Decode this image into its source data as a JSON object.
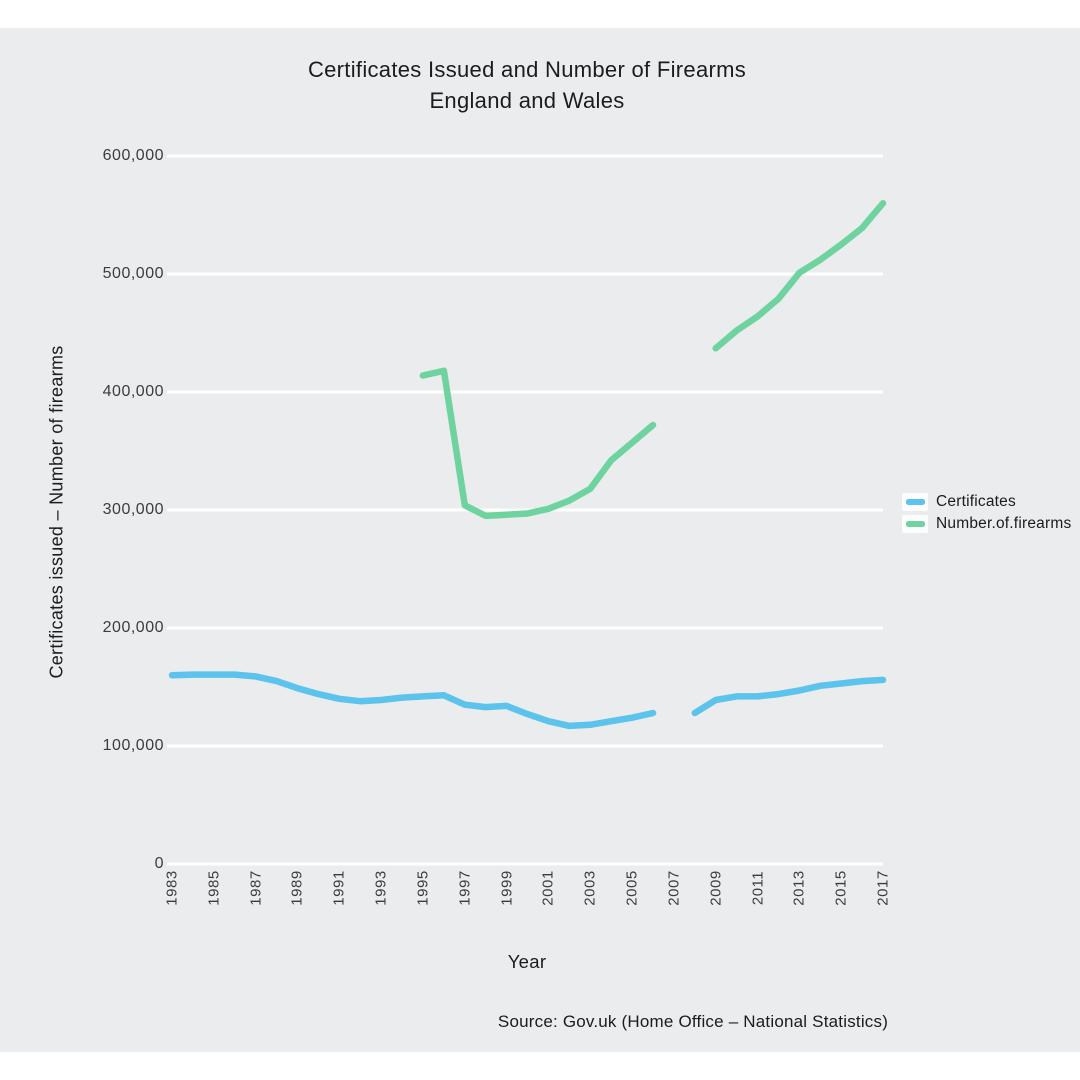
{
  "page": {
    "background_color": "#ffffff",
    "panel_color": "#EAECED",
    "gridline_color": "#ffffff"
  },
  "title": {
    "line1": "Certificates Issued and Number of Firearms",
    "line2": "England and Wales"
  },
  "y_axis": {
    "title": "Certificates issued – Number of firearms",
    "tick_labels": [
      "0",
      "100,000",
      "200,000",
      "300,000",
      "400,000",
      "500,000",
      "600,000"
    ]
  },
  "x_axis": {
    "title": "Year",
    "tick_labels": [
      "1983",
      "1985",
      "1987",
      "1989",
      "1991",
      "1993",
      "1995",
      "1997",
      "1999",
      "2001",
      "2003",
      "2005",
      "2007",
      "2009",
      "2011",
      "2013",
      "2015",
      "2017"
    ]
  },
  "legend": {
    "items": [
      {
        "label": "Certificates",
        "color": "#5CC3EC"
      },
      {
        "label": "Number.of.firearms",
        "color": "#6FD3A0"
      }
    ]
  },
  "source": {
    "text": "Source: Gov.uk (Home Office – National Statistics)"
  },
  "chart_data": {
    "type": "line",
    "title": "Certificates Issued and Number of Firearms — England and Wales",
    "xlabel": "Year",
    "ylabel": "Certificates issued – Number of firearms",
    "x_range": [
      1983,
      2017
    ],
    "y_range": [
      0,
      600000
    ],
    "x_ticks": [
      1983,
      1985,
      1987,
      1989,
      1991,
      1993,
      1995,
      1997,
      1999,
      2001,
      2003,
      2005,
      2007,
      2009,
      2011,
      2013,
      2015,
      2017
    ],
    "y_ticks": [
      0,
      100000,
      200000,
      300000,
      400000,
      500000,
      600000
    ],
    "grid": "horizontal white gridlines on light gray panel",
    "legend_position": "right",
    "series": [
      {
        "name": "Certificates",
        "color": "#5CC3EC",
        "segments": [
          {
            "years": [
              1983,
              1984,
              1985,
              1986,
              1987,
              1988,
              1989,
              1990,
              1991,
              1992,
              1993,
              1994,
              1995,
              1996,
              1997,
              1998,
              1999,
              2000,
              2001,
              2002,
              2003,
              2004,
              2005,
              2006
            ],
            "values": [
              160000,
              160500,
              160500,
              160500,
              159000,
              155000,
              149000,
              144000,
              140000,
              138000,
              139000,
              141000,
              142000,
              143000,
              135000,
              133000,
              134000,
              127000,
              121000,
              117000,
              118000,
              121000,
              124000,
              128000
            ]
          },
          {
            "years": [
              2008,
              2009,
              2010,
              2011,
              2012,
              2013,
              2014,
              2015,
              2016,
              2017
            ],
            "values": [
              128000,
              139000,
              142000,
              142000,
              144000,
              147000,
              151000,
              153000,
              155000,
              156000
            ]
          }
        ]
      },
      {
        "name": "Number.of.firearms",
        "color": "#6FD3A0",
        "segments": [
          {
            "years": [
              1995,
              1996,
              1997,
              1998,
              1999,
              2000,
              2001,
              2002,
              2003,
              2004,
              2005,
              2006
            ],
            "values": [
              414000,
              418000,
              304000,
              295000,
              296000,
              297000,
              301000,
              308000,
              318000,
              342000,
              357000,
              372000
            ]
          },
          {
            "years": [
              2009,
              2010,
              2011,
              2012,
              2013,
              2014,
              2015,
              2016,
              2017
            ],
            "values": [
              437000,
              452000,
              464000,
              479000,
              501000,
              512000,
              525000,
              539000,
              560000
            ]
          }
        ]
      }
    ]
  }
}
